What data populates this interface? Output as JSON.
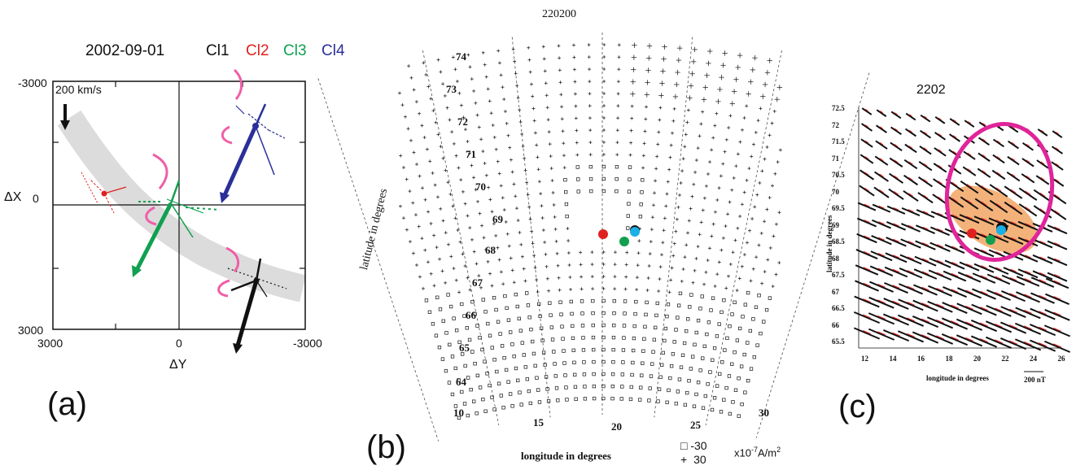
{
  "panel_a": {
    "date": "2002-09-01",
    "clusters": [
      {
        "label": "Cl1",
        "color": "#111111"
      },
      {
        "label": "Cl2",
        "color": "#e02020"
      },
      {
        "label": "Cl3",
        "color": "#10a050"
      },
      {
        "label": "Cl4",
        "color": "#2a2f9a"
      }
    ],
    "scale_label": "200 km/s",
    "x_axis_label": "ΔY",
    "y_axis_label": "ΔX",
    "x_ticks": [
      "3000",
      "0",
      "-3000"
    ],
    "y_ticks": [
      "-3000",
      "0",
      "3000"
    ],
    "panel_letter": "(a)",
    "band_color": "#dcdcdc",
    "arrow_accent": "#ef5fa7"
  },
  "panel_b": {
    "title": "220200",
    "y_axis_label": "latitude in degrees",
    "x_axis_label": "longitude in degrees",
    "lat_labels": [
      "74",
      "73",
      "72",
      "71",
      "70",
      "69",
      "68",
      "67",
      "66",
      "65",
      "64"
    ],
    "lon_labels": [
      "10",
      "15",
      "20",
      "25",
      "30"
    ],
    "legend": [
      {
        "symbol": "□",
        "value": "-30"
      },
      {
        "symbol": "+",
        "value": "30"
      }
    ],
    "legend_unit": "x10",
    "legend_unit_exp": "-7",
    "legend_unit_tail": "A/m",
    "legend_unit_sq": "2",
    "panel_letter": "(b)"
  },
  "panel_c": {
    "title": "2202",
    "y_axis_label": "latitude in degrees",
    "x_axis_label": "longitude in degrees",
    "lat_labels": [
      "72.5",
      "72",
      "71.5",
      "71",
      "70.5",
      "70",
      "69.5",
      "69",
      "68.5",
      "68",
      "67.5",
      "67",
      "66.5",
      "66",
      "65.5"
    ],
    "lon_labels": [
      "12",
      "14",
      "16",
      "18",
      "20",
      "22",
      "24",
      "26"
    ],
    "scale_label": "200 nT",
    "panel_letter": "(c)",
    "ellipse_color": "#e0249a",
    "region_color": "#f3b27a"
  }
}
